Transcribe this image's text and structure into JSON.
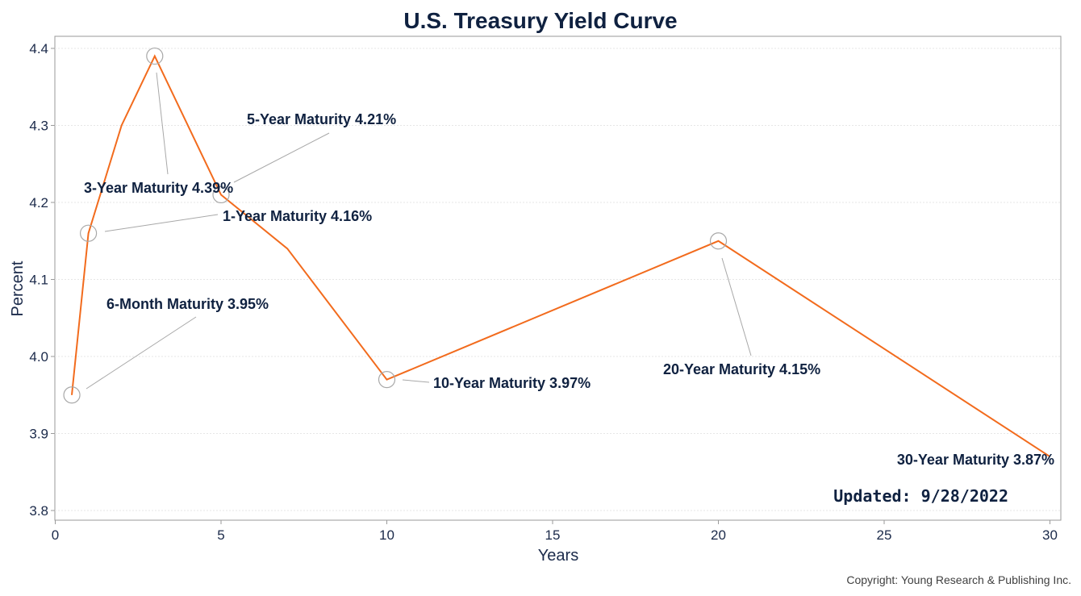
{
  "chart_data": {
    "type": "line",
    "title": "U.S. Treasury Yield Curve",
    "xlabel": "Years",
    "ylabel": "Percent",
    "xlim": [
      0,
      30
    ],
    "ylim": [
      3.8,
      4.4
    ],
    "x_ticks": [
      0,
      5,
      10,
      15,
      20,
      25,
      30
    ],
    "y_ticks": [
      3.8,
      3.9,
      4.0,
      4.1,
      4.2,
      4.3,
      4.4
    ],
    "grid": true,
    "series": [
      {
        "name": "Treasury Yield",
        "color": "#f26b1d",
        "x": [
          0.5,
          1,
          2,
          3,
          5,
          7,
          10,
          20,
          30
        ],
        "y": [
          3.95,
          4.16,
          4.3,
          4.39,
          4.21,
          4.14,
          3.97,
          4.15,
          3.87
        ]
      }
    ],
    "annotations": [
      {
        "label": "6-Month Maturity 3.95%",
        "x": 0.5,
        "y": 3.95
      },
      {
        "label": "1-Year Maturity 4.16%",
        "x": 1,
        "y": 4.16
      },
      {
        "label": "3-Year Maturity 4.39%",
        "x": 3,
        "y": 4.39
      },
      {
        "label": "5-Year Maturity 4.21%",
        "x": 5,
        "y": 4.21
      },
      {
        "label": "10-Year Maturity 3.97%",
        "x": 10,
        "y": 3.97
      },
      {
        "label": "20-Year Maturity 4.15%",
        "x": 20,
        "y": 4.15
      },
      {
        "label": "30-Year Maturity 3.87%",
        "x": 30,
        "y": 3.87
      }
    ],
    "note": "Updated: 9/28/2022",
    "copyright": "Copyright: Young Research & Publishing Inc."
  }
}
